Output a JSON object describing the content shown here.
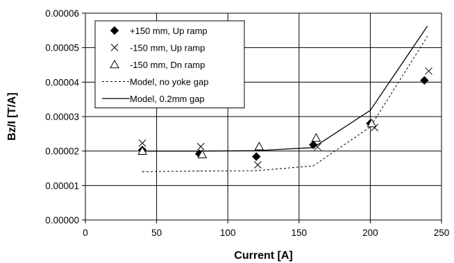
{
  "chart_data": {
    "type": "scatter",
    "title": "",
    "xlabel": "Current [A]",
    "ylabel": "Bz/I  [T/A]",
    "xlim": [
      0,
      250
    ],
    "ylim": [
      0,
      6e-05
    ],
    "x_ticks": [
      0,
      50,
      100,
      150,
      200,
      250
    ],
    "x_tick_labels": [
      "0",
      "50",
      "100",
      "150",
      "200",
      "250"
    ],
    "y_ticks": [
      0,
      1e-05,
      2e-05,
      3e-05,
      4e-05,
      5e-05,
      6e-05
    ],
    "y_tick_labels": [
      "0.00000",
      "0.00001",
      "0.00002",
      "0.00003",
      "0.00004",
      "0.00005",
      "0.00006"
    ],
    "grid": "vertical and horizontal major gridlines",
    "legend_position": "top-left",
    "series": [
      {
        "name": "+150 mm, Up ramp",
        "kind": "marker",
        "marker": "diamond-filled",
        "color": "#000000",
        "x": [
          40,
          80,
          120,
          160,
          200,
          238
        ],
        "y": [
          2.03e-05,
          1.92e-05,
          1.84e-05,
          2.18e-05,
          2.8e-05,
          4.05e-05
        ]
      },
      {
        "name": "-150 mm, Up ramp",
        "kind": "marker",
        "marker": "x",
        "color": "#000000",
        "x": [
          40,
          81,
          121,
          163,
          203,
          241
        ],
        "y": [
          2.23e-05,
          2.13e-05,
          1.6e-05,
          2.12e-05,
          2.68e-05,
          4.32e-05
        ]
      },
      {
        "name": "-150 mm, Dn ramp",
        "kind": "marker",
        "marker": "triangle-open",
        "color": "#000000",
        "x": [
          40,
          82,
          122,
          162,
          201
        ],
        "y": [
          2e-05,
          1.9e-05,
          2.13e-05,
          2.38e-05,
          2.8e-05
        ]
      },
      {
        "name": "Model, no yoke gap",
        "kind": "line",
        "dash": "dashed",
        "color": "#000000",
        "x": [
          40,
          80,
          120,
          160,
          200,
          240
        ],
        "y": [
          1.4e-05,
          1.42e-05,
          1.43e-05,
          1.57e-05,
          2.7e-05,
          5.32e-05
        ]
      },
      {
        "name": "Model, 0.2mm gap",
        "kind": "line",
        "dash": "solid",
        "color": "#000000",
        "x": [
          40,
          80,
          120,
          160,
          200,
          240
        ],
        "y": [
          2e-05,
          2e-05,
          2.01e-05,
          2.1e-05,
          3.18e-05,
          5.62e-05
        ]
      }
    ]
  }
}
